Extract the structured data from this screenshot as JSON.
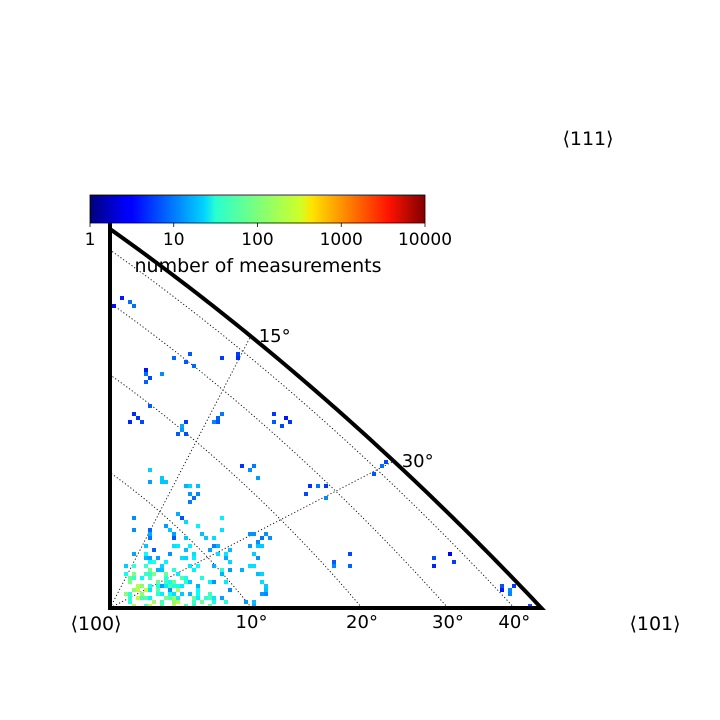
{
  "chart_data": {
    "type": "heatmap",
    "subtype": "inverse-pole-figure-triangle",
    "corner_labels": [
      "⟨100⟩",
      "⟨101⟩",
      "⟨111⟩"
    ],
    "tilt_ticks": [
      {
        "value": 10,
        "label": "10$^\\circ$"
      },
      {
        "value": 20,
        "label": "20$^\\circ$"
      },
      {
        "value": 30,
        "label": "30$^\\circ$"
      },
      {
        "value": 40,
        "label": "40$^\\circ$"
      }
    ],
    "azimuth_ticks": [
      {
        "value": 15,
        "label": "15$^\\circ$"
      },
      {
        "value": 30,
        "label": "30$^\\circ$"
      }
    ],
    "tilt_tick_labels": [
      "10",
      "20",
      "30",
      "40"
    ],
    "azimuth_tick_labels": [
      "15",
      "30"
    ],
    "degree_symbol": "°",
    "grid": true,
    "colorbar": {
      "label": "number of measurements",
      "scale": "log",
      "colormap": "jet",
      "ticks": [
        "1",
        "10",
        "100",
        "1000",
        "10000"
      ],
      "range": [
        1,
        10000
      ],
      "placement": "top-left"
    },
    "points": [
      {
        "tilt": 3.0,
        "azimuth": 6.7,
        "count": 120
      },
      {
        "tilt": 4.1,
        "azimuth": 13.9,
        "count": 60
      },
      {
        "tilt": 3.5,
        "azimuth": 22.4,
        "count": 25
      },
      {
        "tilt": 5.4,
        "azimuth": 5.4,
        "count": 40
      },
      {
        "tilt": 6.3,
        "azimuth": 17.1,
        "count": 15
      },
      {
        "tilt": 7.7,
        "azimuth": 10.3,
        "count": 20
      },
      {
        "tilt": 8.1,
        "azimuth": 28.1,
        "count": 8
      },
      {
        "tilt": 10.0,
        "azimuth": 1.8,
        "count": 10
      },
      {
        "tilt": 10.6,
        "azimuth": 20.4,
        "count": 12
      },
      {
        "tilt": 11.9,
        "azimuth": 11.7,
        "count": 10
      },
      {
        "tilt": 12.8,
        "azimuth": 34.2,
        "count": 8
      },
      {
        "tilt": 14.6,
        "azimuth": 26.1,
        "count": 10
      },
      {
        "tilt": 16.0,
        "azimuth": 14.4,
        "count": 6
      },
      {
        "tilt": 18.1,
        "azimuth": 39.4,
        "count": 5
      },
      {
        "tilt": 20.3,
        "azimuth": 33.0,
        "count": 6
      },
      {
        "tilt": 21.9,
        "azimuth": 22.0,
        "count": 5
      },
      {
        "tilt": 22.8,
        "azimuth": 7.6,
        "count": 4
      },
      {
        "tilt": 23.8,
        "azimuth": 38.8,
        "count": 4
      },
      {
        "tilt": 26.0,
        "azimuth": 28.5,
        "count": 4
      },
      {
        "tilt": 27.2,
        "azimuth": 16.1,
        "count": 4
      },
      {
        "tilt": 30.3,
        "azimuth": 35.3,
        "count": 3
      },
      {
        "tilt": 32.4,
        "azimuth": 43.1,
        "count": 3
      },
      {
        "tilt": 33.8,
        "azimuth": 23.6,
        "count": 4
      },
      {
        "tilt": 35.6,
        "azimuth": 5.4,
        "count": 3
      },
      {
        "tilt": 38.0,
        "azimuth": 31.5,
        "count": 2
      },
      {
        "tilt": 40.5,
        "azimuth": 15.0,
        "count": 3
      },
      {
        "tilt": 42.1,
        "azimuth": 2.3,
        "count": 4
      },
      {
        "tilt": 44.0,
        "azimuth": 0.8,
        "count": 3
      }
    ]
  }
}
